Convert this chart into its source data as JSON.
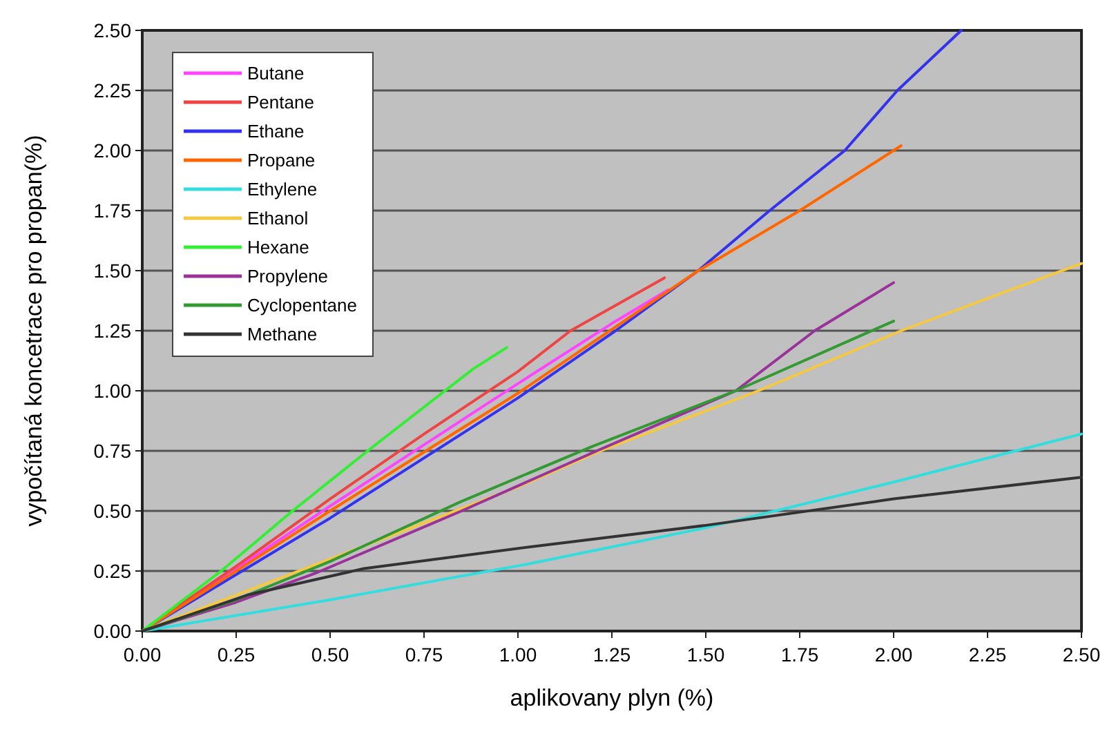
{
  "chart_data": {
    "type": "line",
    "xlabel": "aplikovany plyn (%)",
    "ylabel": "vypočítaná koncetrace pro propan(%)",
    "xlim": [
      0,
      2.5
    ],
    "ylim": [
      0,
      2.5
    ],
    "xticks": [
      {
        "value": 0,
        "label": "0.00"
      },
      {
        "value": 0.25,
        "label": "0.25"
      },
      {
        "value": 0.5,
        "label": "0.50"
      },
      {
        "value": 0.75,
        "label": "0.75"
      },
      {
        "value": 1,
        "label": "1.00"
      },
      {
        "value": 1.25,
        "label": "1.25"
      },
      {
        "value": 1.5,
        "label": "1.50"
      },
      {
        "value": 1.75,
        "label": "1.75"
      },
      {
        "value": 2,
        "label": "2.00"
      },
      {
        "value": 2.25,
        "label": "2.25"
      },
      {
        "value": 2.5,
        "label": "2.50"
      }
    ],
    "yticks": [
      {
        "value": 0,
        "label": "0.00"
      },
      {
        "value": 0.25,
        "label": "0.25"
      },
      {
        "value": 0.5,
        "label": "0.50"
      },
      {
        "value": 0.75,
        "label": "0.75"
      },
      {
        "value": 1,
        "label": "1.00"
      },
      {
        "value": 1.25,
        "label": "1.25"
      },
      {
        "value": 1.5,
        "label": "1.50"
      },
      {
        "value": 1.75,
        "label": "1.75"
      },
      {
        "value": 2,
        "label": "2.00"
      },
      {
        "value": 2.25,
        "label": "2.25"
      },
      {
        "value": 2.5,
        "label": "2.50"
      }
    ],
    "grid": "y",
    "legend": "top left",
    "marker": "none",
    "line_style": "solid",
    "series": [
      {
        "name": "Butane",
        "color": "#ff44ff",
        "x": [
          0,
          0.5,
          1.0,
          1.25,
          1.4
        ],
        "values": [
          0,
          0.52,
          1.03,
          1.28,
          1.42
        ]
      },
      {
        "name": "Pentane",
        "color": "#ee4444",
        "x": [
          0,
          0.25,
          0.5,
          0.75,
          1.0,
          1.14,
          1.39
        ],
        "values": [
          0,
          0.27,
          0.55,
          0.82,
          1.08,
          1.25,
          1.47
        ]
      },
      {
        "name": "Ethane",
        "color": "#3333ee",
        "x": [
          0,
          0.5,
          1.0,
          1.26,
          1.48,
          1.67,
          1.87,
          2.01,
          2.18
        ],
        "values": [
          0,
          0.47,
          0.97,
          1.25,
          1.5,
          1.75,
          2.0,
          2.25,
          2.5
        ]
      },
      {
        "name": "Propane",
        "color": "#ff6600",
        "x": [
          0,
          0.5,
          1.0,
          1.48,
          1.75,
          2.02
        ],
        "values": [
          0,
          0.5,
          0.99,
          1.5,
          1.75,
          2.02
        ]
      },
      {
        "name": "Ethylene",
        "color": "#33dddd",
        "x": [
          0,
          0.5,
          1.03,
          1.5,
          2.0,
          2.5
        ],
        "values": [
          0,
          0.13,
          0.28,
          0.43,
          0.62,
          0.82
        ]
      },
      {
        "name": "Ethanol",
        "color": "#f5c842",
        "x": [
          0,
          1.0,
          1.22,
          1.64,
          2.02,
          2.5
        ],
        "values": [
          0,
          0.6,
          0.75,
          1.0,
          1.25,
          1.53
        ]
      },
      {
        "name": "Hexane",
        "color": "#33ee33",
        "x": [
          0,
          0.21,
          0.4,
          0.6,
          0.88,
          0.97
        ],
        "values": [
          0,
          0.25,
          0.5,
          0.75,
          1.09,
          1.18
        ]
      },
      {
        "name": "Propylene",
        "color": "#993399",
        "x": [
          0,
          0.25,
          0.46,
          0.85,
          1.21,
          1.58,
          1.79,
          2.0
        ],
        "values": [
          0,
          0.12,
          0.24,
          0.5,
          0.75,
          1.0,
          1.25,
          1.45
        ]
      },
      {
        "name": "Cyclopentane",
        "color": "#339933",
        "x": [
          0,
          0.25,
          0.5,
          0.85,
          1.2,
          1.58,
          2.0
        ],
        "values": [
          0,
          0.13,
          0.29,
          0.54,
          0.77,
          1.0,
          1.29
        ]
      },
      {
        "name": "Methane",
        "color": "#333333",
        "x": [
          0,
          0.28,
          0.59,
          1.03,
          1.5,
          2.0,
          2.5
        ],
        "values": [
          0,
          0.15,
          0.26,
          0.35,
          0.44,
          0.55,
          0.64
        ]
      }
    ]
  }
}
